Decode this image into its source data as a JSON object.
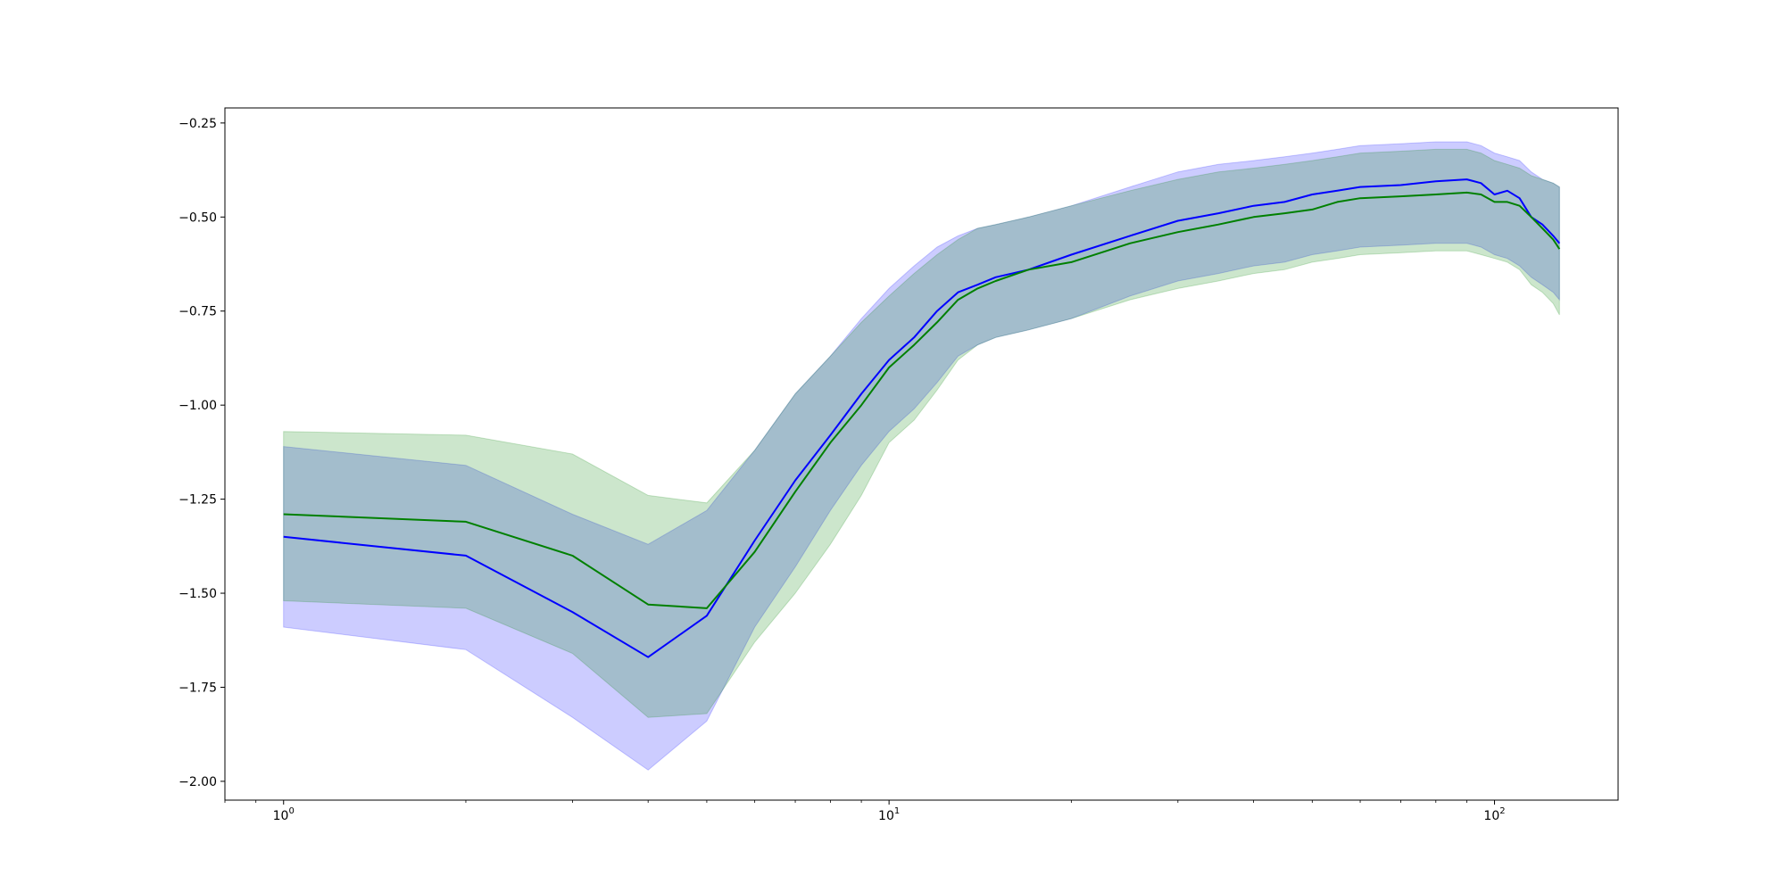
{
  "chart_data": {
    "type": "line",
    "title": "",
    "xlabel": "",
    "ylabel": "",
    "xscale": "log",
    "xlim": [
      0.8,
      160
    ],
    "ylim": [
      -2.05,
      -0.21
    ],
    "grid": false,
    "legend": "none",
    "y_ticks": [
      -0.25,
      -0.5,
      -0.75,
      -1.0,
      -1.25,
      -1.5,
      -1.75,
      -2.0
    ],
    "y_tick_labels": [
      "−0.25",
      "−0.50",
      "−0.75",
      "−1.00",
      "−1.25",
      "−1.50",
      "−1.75",
      "−2.00"
    ],
    "x_ticks": [
      {
        "base": "10",
        "exp": "0",
        "value": 1
      },
      {
        "base": "10",
        "exp": "1",
        "value": 10
      },
      {
        "base": "10",
        "exp": "2",
        "value": 100
      }
    ],
    "x": [
      1,
      2,
      3,
      4,
      5,
      6,
      7,
      8,
      9,
      10,
      11,
      12,
      13,
      14,
      15,
      17,
      20,
      25,
      30,
      35,
      40,
      45,
      50,
      55,
      60,
      70,
      80,
      90,
      95,
      100,
      105,
      110,
      115,
      120,
      125,
      128
    ],
    "series": [
      {
        "color": "#0000ff",
        "band_color": "#0000ff",
        "values": [
          -1.35,
          -1.4,
          -1.55,
          -1.67,
          -1.56,
          -1.36,
          -1.2,
          -1.08,
          -0.97,
          -0.88,
          -0.82,
          -0.75,
          -0.7,
          -0.68,
          -0.66,
          -0.64,
          -0.6,
          -0.55,
          -0.51,
          -0.49,
          -0.47,
          -0.46,
          -0.44,
          -0.43,
          -0.42,
          -0.415,
          -0.405,
          -0.4,
          -0.41,
          -0.44,
          -0.43,
          -0.45,
          -0.5,
          -0.52,
          -0.55,
          -0.57
        ],
        "upper": [
          -1.11,
          -1.16,
          -1.29,
          -1.37,
          -1.28,
          -1.12,
          -0.97,
          -0.87,
          -0.77,
          -0.69,
          -0.63,
          -0.58,
          -0.55,
          -0.53,
          -0.52,
          -0.5,
          -0.47,
          -0.42,
          -0.38,
          -0.36,
          -0.35,
          -0.34,
          -0.33,
          -0.32,
          -0.31,
          -0.305,
          -0.3,
          -0.3,
          -0.31,
          -0.33,
          -0.34,
          -0.35,
          -0.38,
          -0.4,
          -0.41,
          -0.42
        ],
        "lower": [
          -1.59,
          -1.65,
          -1.83,
          -1.97,
          -1.84,
          -1.59,
          -1.43,
          -1.28,
          -1.16,
          -1.07,
          -1.01,
          -0.94,
          -0.87,
          -0.84,
          -0.82,
          -0.8,
          -0.77,
          -0.71,
          -0.67,
          -0.65,
          -0.63,
          -0.62,
          -0.6,
          -0.59,
          -0.58,
          -0.575,
          -0.57,
          -0.57,
          -0.58,
          -0.6,
          -0.61,
          -0.63,
          -0.66,
          -0.68,
          -0.7,
          -0.72
        ]
      },
      {
        "color": "#008000",
        "band_color": "#008000",
        "values": [
          -1.29,
          -1.31,
          -1.4,
          -1.53,
          -1.54,
          -1.39,
          -1.23,
          -1.1,
          -1.0,
          -0.9,
          -0.84,
          -0.78,
          -0.72,
          -0.69,
          -0.67,
          -0.64,
          -0.62,
          -0.57,
          -0.54,
          -0.52,
          -0.5,
          -0.49,
          -0.48,
          -0.46,
          -0.45,
          -0.445,
          -0.44,
          -0.435,
          -0.44,
          -0.46,
          -0.46,
          -0.47,
          -0.5,
          -0.53,
          -0.56,
          -0.585
        ],
        "upper": [
          -1.07,
          -1.08,
          -1.13,
          -1.24,
          -1.26,
          -1.12,
          -0.97,
          -0.87,
          -0.78,
          -0.71,
          -0.65,
          -0.6,
          -0.56,
          -0.53,
          -0.52,
          -0.5,
          -0.47,
          -0.43,
          -0.4,
          -0.38,
          -0.37,
          -0.36,
          -0.35,
          -0.34,
          -0.33,
          -0.325,
          -0.32,
          -0.32,
          -0.33,
          -0.35,
          -0.36,
          -0.37,
          -0.39,
          -0.4,
          -0.41,
          -0.42
        ],
        "lower": [
          -1.52,
          -1.54,
          -1.66,
          -1.83,
          -1.82,
          -1.63,
          -1.5,
          -1.37,
          -1.24,
          -1.1,
          -1.04,
          -0.96,
          -0.88,
          -0.84,
          -0.82,
          -0.8,
          -0.77,
          -0.72,
          -0.69,
          -0.67,
          -0.65,
          -0.64,
          -0.62,
          -0.61,
          -0.6,
          -0.595,
          -0.59,
          -0.59,
          -0.6,
          -0.61,
          -0.62,
          -0.64,
          -0.68,
          -0.7,
          -0.73,
          -0.76
        ]
      }
    ]
  }
}
